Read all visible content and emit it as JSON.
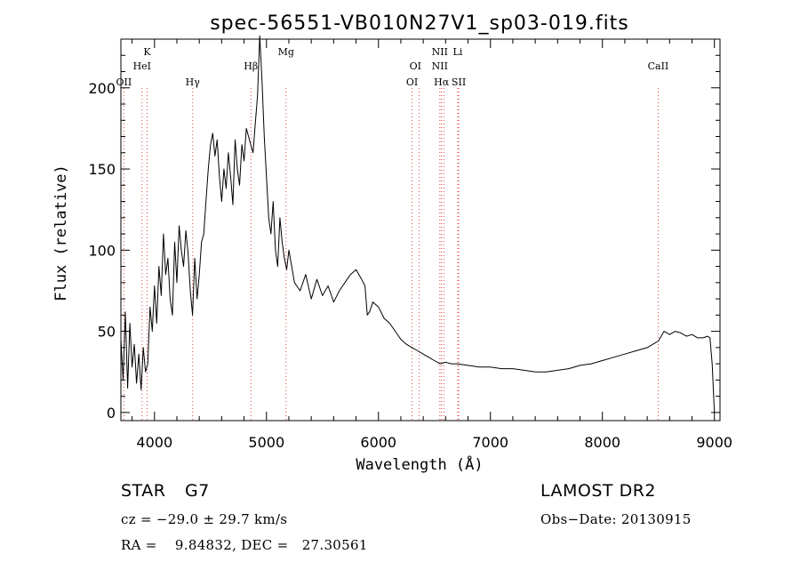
{
  "chart_data": {
    "type": "line",
    "title": "spec-56551-VB010N27V1_sp03-019.fits",
    "xlabel": "Wavelength (Å)",
    "ylabel": "Flux (relative)",
    "xlim": [
      3700,
      9050
    ],
    "ylim": [
      -5,
      230
    ],
    "xticks": [
      4000,
      5000,
      6000,
      7000,
      8000,
      9000
    ],
    "yticks": [
      0,
      50,
      100,
      150,
      200
    ],
    "grid": false,
    "line_color": "#000000",
    "marker_color": "#e0443c",
    "series": [
      {
        "x": [
          3700,
          3720,
          3740,
          3760,
          3780,
          3800,
          3820,
          3840,
          3860,
          3880,
          3900,
          3920,
          3940,
          3960,
          3980,
          4000,
          4020,
          4040,
          4060,
          4080,
          4100,
          4120,
          4140,
          4160,
          4180,
          4200,
          4220,
          4240,
          4260,
          4280,
          4300,
          4320,
          4340,
          4360,
          4380,
          4400,
          4420,
          4440,
          4460,
          4480,
          4500,
          4520,
          4540,
          4560,
          4580,
          4600,
          4620,
          4640,
          4660,
          4680,
          4700,
          4720,
          4740,
          4760,
          4780,
          4800,
          4820,
          4840,
          4860,
          4880,
          4900,
          4920,
          4940,
          4960,
          4980,
          5000,
          5020,
          5040,
          5060,
          5080,
          5100,
          5120,
          5140,
          5160,
          5180,
          5200,
          5250,
          5300,
          5350,
          5400,
          5450,
          5500,
          5550,
          5600,
          5650,
          5700,
          5750,
          5800,
          5850,
          5880,
          5900,
          5920,
          5950,
          6000,
          6050,
          6100,
          6150,
          6200,
          6250,
          6300,
          6350,
          6400,
          6450,
          6500,
          6550,
          6600,
          6650,
          6700,
          6800,
          6900,
          7000,
          7100,
          7200,
          7300,
          7400,
          7500,
          7600,
          7700,
          7800,
          7900,
          8000,
          8100,
          8200,
          8300,
          8400,
          8450,
          8500,
          8550,
          8600,
          8650,
          8700,
          8750,
          8800,
          8850,
          8900,
          8940,
          8960,
          8980,
          9000
        ],
        "y": [
          45,
          20,
          62,
          15,
          55,
          28,
          42,
          18,
          36,
          14,
          40,
          25,
          30,
          65,
          50,
          78,
          55,
          90,
          72,
          110,
          85,
          95,
          70,
          60,
          105,
          80,
          115,
          100,
          90,
          112,
          98,
          75,
          60,
          95,
          70,
          85,
          105,
          110,
          130,
          150,
          165,
          172,
          158,
          168,
          145,
          130,
          150,
          138,
          160,
          145,
          128,
          168,
          150,
          140,
          165,
          155,
          175,
          170,
          165,
          160,
          178,
          195,
          232,
          205,
          170,
          145,
          120,
          110,
          130,
          100,
          90,
          120,
          105,
          95,
          88,
          100,
          80,
          75,
          85,
          70,
          82,
          72,
          78,
          68,
          75,
          80,
          85,
          88,
          82,
          78,
          60,
          62,
          68,
          65,
          58,
          55,
          50,
          45,
          42,
          40,
          38,
          36,
          34,
          32,
          30,
          31,
          30,
          30,
          29,
          28,
          28,
          27,
          27,
          26,
          25,
          25,
          26,
          27,
          29,
          30,
          32,
          34,
          36,
          38,
          40,
          42,
          44,
          50,
          48,
          50,
          49,
          47,
          48,
          46,
          46,
          47,
          46,
          30,
          0
        ]
      }
    ],
    "lines": [
      "OII",
      "K",
      "HeI",
      "Hγ",
      "Hβ",
      "Mg",
      "OI",
      "OI",
      "NII",
      "NII",
      "Hα",
      "Li",
      "SII",
      "CaII"
    ],
    "line_wavelengths": [
      3727,
      3934,
      3889,
      4341,
      4861,
      5175,
      6300,
      6364,
      6548,
      6584,
      6563,
      6708,
      6717,
      8498
    ],
    "line_row": [
      3,
      1,
      2,
      3,
      2,
      1,
      2,
      3,
      1,
      2,
      3,
      1,
      3,
      2
    ],
    "line_label_wavelengths": [
      3727,
      3934,
      3889,
      4341,
      4861,
      5175,
      6330,
      6300,
      6548,
      6548,
      6563,
      6708,
      6717,
      8498
    ]
  },
  "info": {
    "object_class": "STAR",
    "subclass": "G7",
    "survey": "LAMOST DR2",
    "cz": "cz = −29.0 ± 29.7 km/s",
    "obs_date": "Obs−Date: 20130915",
    "radec": "RA =    9.84832, DEC =   27.30561"
  }
}
